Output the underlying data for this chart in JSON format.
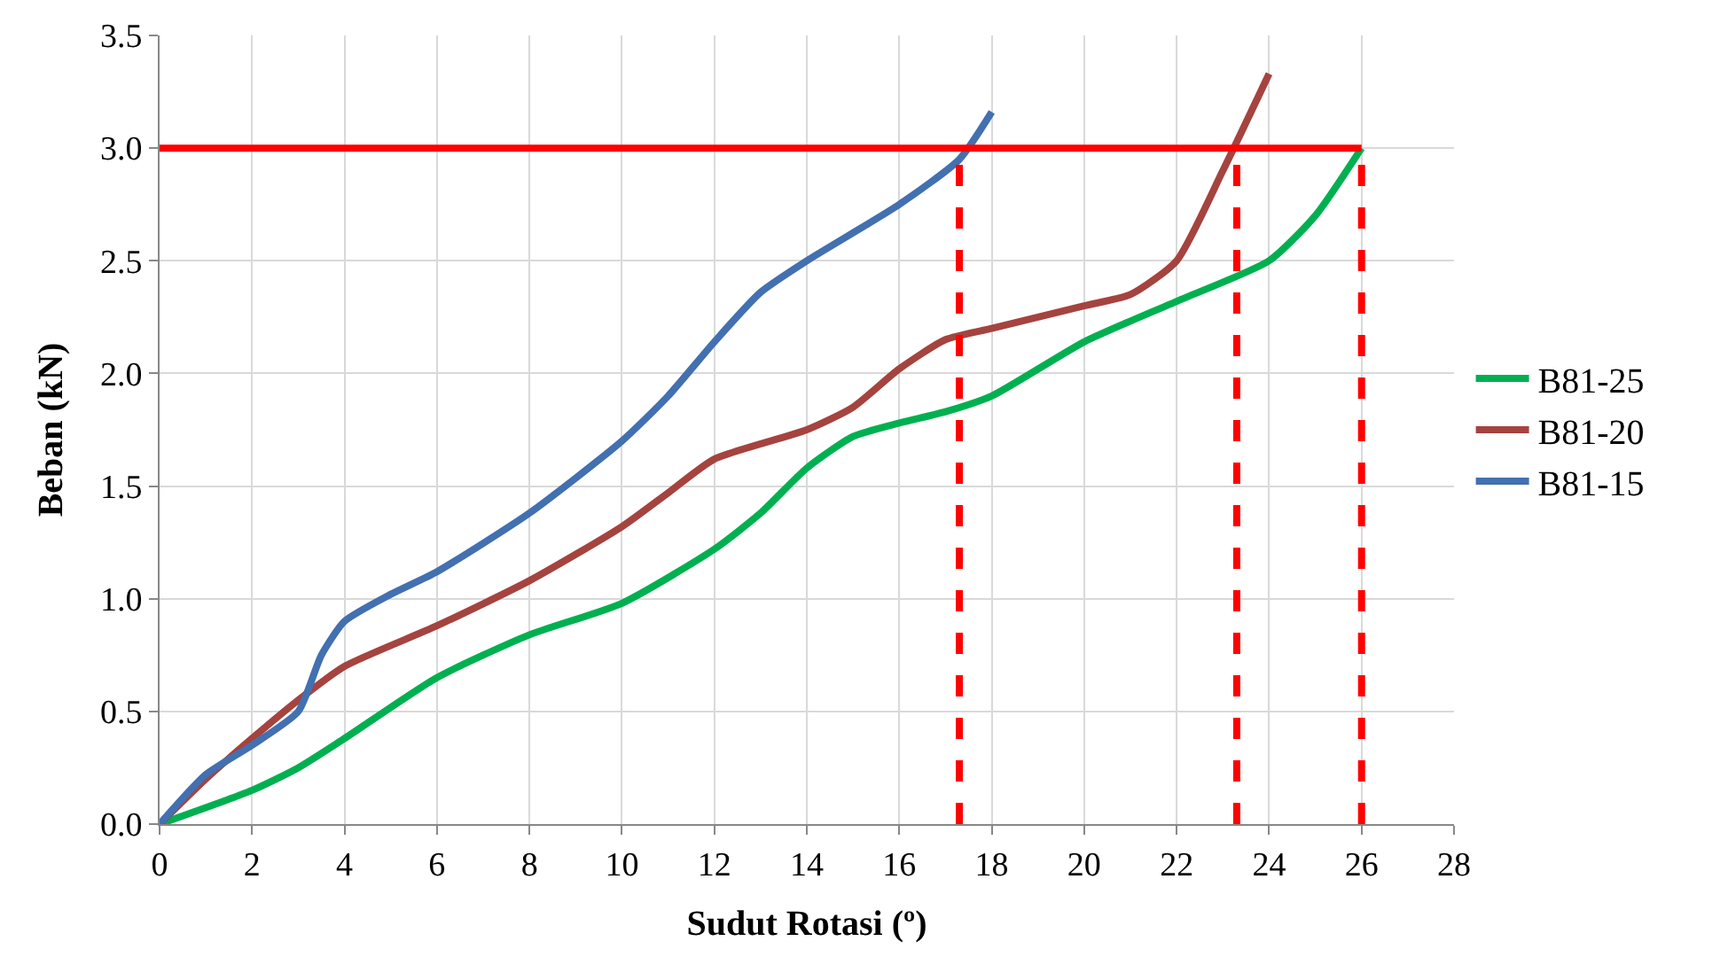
{
  "chart_data": {
    "type": "line",
    "xlabel": "Sudut Rotasi (º)",
    "ylabel": "Beban (kN)",
    "xlim": [
      0,
      28
    ],
    "xticks": [
      0,
      2,
      4,
      6,
      8,
      10,
      12,
      14,
      16,
      18,
      20,
      22,
      24,
      26,
      28
    ],
    "ylim": [
      0,
      3.5
    ],
    "yticks": [
      {
        "value": 0,
        "label": "0.0"
      },
      {
        "value": 0.5,
        "label": "0.5"
      },
      {
        "value": 1,
        "label": "1.0"
      },
      {
        "value": 1.5,
        "label": "1.5"
      },
      {
        "value": 2,
        "label": "2.0"
      },
      {
        "value": 2.5,
        "label": "2.5"
      },
      {
        "value": 3,
        "label": "3.0"
      },
      {
        "value": 3.5,
        "label": "3.5"
      }
    ],
    "grid": true,
    "legend": "right",
    "marker": "none",
    "line_style": "solid",
    "series": [
      {
        "name": "B81-25",
        "color": "#00b050",
        "x": [
          0,
          2,
          3,
          4,
          6,
          8,
          10,
          12,
          13,
          14,
          15,
          16,
          17,
          18,
          20,
          22,
          24,
          25,
          26
        ],
        "values": [
          0,
          0.15,
          0.25,
          0.38,
          0.65,
          0.84,
          0.98,
          1.22,
          1.38,
          1.58,
          1.72,
          1.78,
          1.83,
          1.9,
          2.14,
          2.32,
          2.5,
          2.7,
          3.0
        ]
      },
      {
        "name": "B81-20",
        "color": "#a5433f",
        "x": [
          0,
          1,
          2,
          3,
          4,
          6,
          8,
          10,
          11,
          12,
          14,
          15,
          16,
          17,
          18,
          20,
          21,
          22,
          23,
          24
        ],
        "values": [
          0,
          0.2,
          0.38,
          0.55,
          0.7,
          0.88,
          1.08,
          1.32,
          1.47,
          1.62,
          1.75,
          1.85,
          2.02,
          2.15,
          2.2,
          2.3,
          2.35,
          2.5,
          2.9,
          3.33
        ]
      },
      {
        "name": "B81-15",
        "color": "#4270b0",
        "x": [
          0,
          1,
          2,
          3,
          3.5,
          4,
          5,
          6,
          8,
          10,
          11,
          12,
          13,
          14,
          16,
          17.3,
          18
        ],
        "values": [
          0,
          0.22,
          0.35,
          0.5,
          0.75,
          0.9,
          1.02,
          1.12,
          1.38,
          1.7,
          1.9,
          2.14,
          2.36,
          2.5,
          2.75,
          2.95,
          3.16
        ]
      },
      {
        "color": "#ff0000",
        "x": [
          0,
          26
        ],
        "values": [
          3,
          3
        ]
      },
      {
        "color": "#ff0000",
        "line_style": "dashed",
        "x": [
          17.3,
          17.3
        ],
        "values": [
          0,
          3
        ]
      },
      {
        "color": "#ff0000",
        "line_style": "dashed",
        "x": [
          23.3,
          23.3
        ],
        "values": [
          0,
          3
        ]
      },
      {
        "color": "#ff0000",
        "line_style": "dashed",
        "x": [
          26,
          26
        ],
        "values": [
          0,
          3
        ]
      }
    ]
  }
}
